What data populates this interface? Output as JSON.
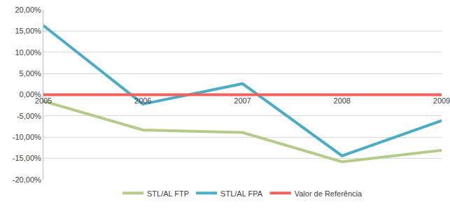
{
  "chart_data": {
    "type": "line",
    "categories": [
      "2005",
      "2006",
      "2007",
      "2008",
      "2009"
    ],
    "series": [
      {
        "name": "STL/AL FTP",
        "color": "#b3cc8a",
        "line_style": "solid",
        "values": [
          -1.5,
          -8.3,
          -8.9,
          -15.8,
          -13.1
        ]
      },
      {
        "name": "STL/AL FPA",
        "color": "#4bacc6",
        "line_style": "solid",
        "values": [
          16.3,
          -2.2,
          2.6,
          -14.4,
          -6.1
        ]
      },
      {
        "name": "Valor de Referência",
        "color": "#f0605c",
        "line_style": "solid",
        "values": [
          0,
          0,
          0,
          0,
          0
        ]
      }
    ],
    "ylim": [
      -20,
      20
    ],
    "yticks": [
      {
        "value": -20,
        "label": "-20,00%"
      },
      {
        "value": -15,
        "label": "-15,00%"
      },
      {
        "value": -10,
        "label": "-10,00%"
      },
      {
        "value": -5,
        "label": "-5,00%"
      },
      {
        "value": 0,
        "label": "0,00%"
      },
      {
        "value": 5,
        "label": "5,00%"
      },
      {
        "value": 10,
        "label": "10,00%"
      },
      {
        "value": 15,
        "label": "15,00%"
      },
      {
        "value": 20,
        "label": "20,00%"
      }
    ],
    "grid": true,
    "legend": "bottom"
  }
}
